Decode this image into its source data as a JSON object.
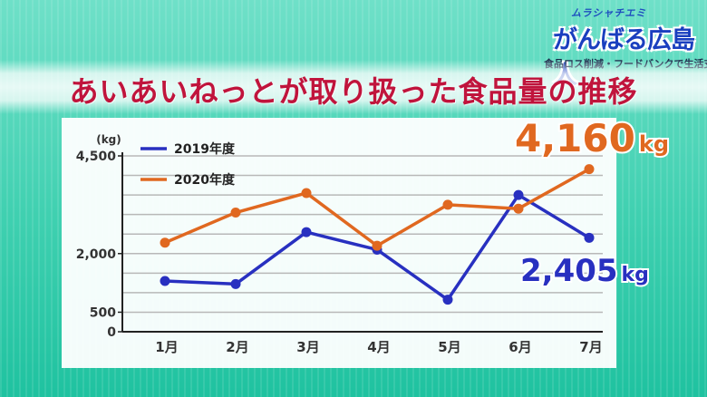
{
  "logo": {
    "top": "ムラシャチエミ",
    "main": "がんばる広島人",
    "subtitle": "食品ロス削減・フードバンクで生活支援"
  },
  "title": "あいあいねっとが取り扱った食品量の推移",
  "colors": {
    "series_2019": "#2830c0",
    "series_2020": "#e06820",
    "title": "#c0143c"
  },
  "chart_data": {
    "type": "line",
    "unit_label": "(kg)",
    "categories": [
      "1月",
      "2月",
      "3月",
      "4月",
      "5月",
      "6月",
      "7月"
    ],
    "yticks": [
      {
        "value": 0,
        "label": "0"
      },
      {
        "value": 500,
        "label": "500"
      },
      {
        "value": 2000,
        "label": "2,000"
      },
      {
        "value": 4500,
        "label": "4,500"
      }
    ],
    "ylim": [
      0,
      4500
    ],
    "grid": true,
    "legend_position": "top-left",
    "series": [
      {
        "name": "2019年度",
        "values": [
          1300,
          1220,
          2550,
          2100,
          820,
          3500,
          2405
        ]
      },
      {
        "name": "2020年度",
        "values": [
          2280,
          3050,
          3550,
          2200,
          3250,
          3150,
          4160
        ]
      }
    ],
    "annotations": [
      {
        "text": "4,160",
        "unit": "kg",
        "series": 1,
        "index": 6
      },
      {
        "text": "2,405",
        "unit": "kg",
        "series": 0,
        "index": 6
      }
    ]
  }
}
